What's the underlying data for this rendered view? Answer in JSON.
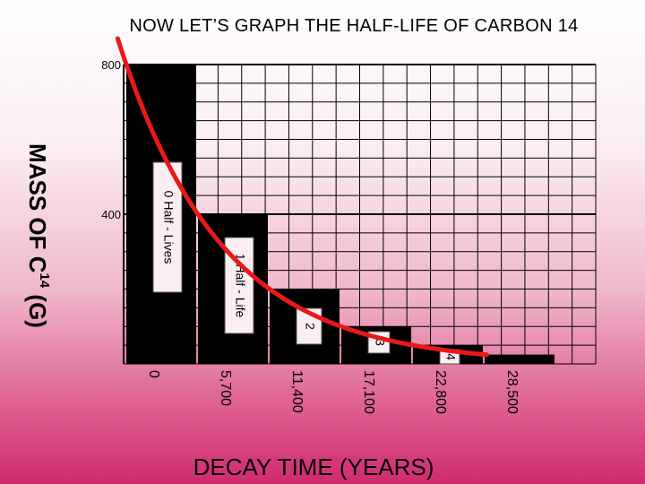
{
  "title": "NOW LET’S GRAPH THE HALF-LIFE OF CARBON 14",
  "chart_data": {
    "type": "bar",
    "title": "NOW LET’S GRAPH THE HALF-LIFE OF CARBON 14",
    "xlabel": "DECAY TIME (YEARS)",
    "ylabel": "MASS OF C",
    "ylabel_sup": "14",
    "ylabel_unit": " (G)",
    "ylim": [
      0,
      800
    ],
    "yticks": [
      {
        "value": 800,
        "label": "800"
      },
      {
        "value": 400,
        "label": "400"
      }
    ],
    "categories": [
      "0",
      "5,700",
      "11,400",
      "17,100",
      "22,800",
      "28,500"
    ],
    "values": [
      800,
      400,
      200,
      100,
      50,
      25
    ],
    "bar_labels": [
      "0 Half - Lives",
      "1 Half - Life",
      "2",
      "3",
      "4",
      ""
    ],
    "curve": {
      "type": "exponential-decay",
      "initial": 800,
      "half_life": 5700,
      "color": "#e8191a"
    },
    "grid": true,
    "colors": {
      "bars": "#000000",
      "label_box": "#fbeef3",
      "curve": "#e8191a"
    }
  }
}
